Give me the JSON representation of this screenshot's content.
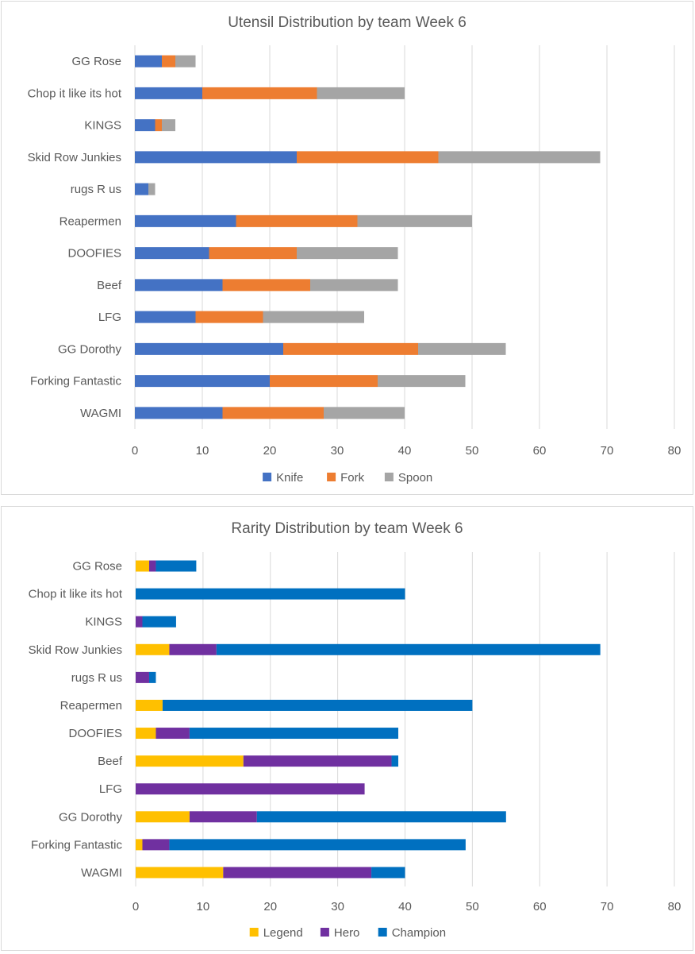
{
  "chart_data": [
    {
      "type": "bar",
      "orientation": "horizontal",
      "stacked": true,
      "title": "Utensil Distribution by team Week 6",
      "xlabel": "",
      "ylabel": "",
      "xlim": [
        0,
        80
      ],
      "ticks": [
        "0",
        "10",
        "20",
        "30",
        "40",
        "50",
        "60",
        "70",
        "80"
      ],
      "grid": true,
      "legend_position": "bottom",
      "categories": [
        "GG Rose",
        "Chop it like its hot",
        "KINGS",
        "Skid Row Junkies",
        "rugs R us",
        "Reapermen",
        "DOOFIES",
        "Beef",
        "LFG",
        "GG Dorothy",
        "Forking Fantastic",
        "WAGMI"
      ],
      "series": [
        {
          "name": "Knife",
          "color": "#4472C4",
          "values": [
            4,
            10,
            3,
            24,
            2,
            15,
            11,
            13,
            9,
            22,
            20,
            13
          ]
        },
        {
          "name": "Fork",
          "color": "#ED7D31",
          "values": [
            2,
            17,
            1,
            21,
            0,
            18,
            13,
            13,
            10,
            20,
            16,
            15
          ]
        },
        {
          "name": "Spoon",
          "color": "#A5A5A5",
          "values": [
            3,
            13,
            2,
            24,
            1,
            17,
            15,
            13,
            15,
            13,
            13,
            12
          ]
        }
      ]
    },
    {
      "type": "bar",
      "orientation": "horizontal",
      "stacked": true,
      "title": "Rarity Distribution by team Week 6",
      "xlabel": "",
      "ylabel": "",
      "xlim": [
        0,
        80
      ],
      "ticks": [
        "0",
        "10",
        "20",
        "30",
        "40",
        "50",
        "60",
        "70",
        "80"
      ],
      "grid": true,
      "legend_position": "bottom",
      "categories": [
        "GG Rose",
        "Chop it like its hot",
        "KINGS",
        "Skid Row Junkies",
        "rugs R us",
        "Reapermen",
        "DOOFIES",
        "Beef",
        "LFG",
        "GG Dorothy",
        "Forking Fantastic",
        "WAGMI"
      ],
      "series": [
        {
          "name": "Legend",
          "color": "#FFC000",
          "values": [
            2,
            0,
            0,
            5,
            0,
            4,
            3,
            16,
            0,
            8,
            1,
            13
          ]
        },
        {
          "name": "Hero",
          "color": "#7030A0",
          "values": [
            1,
            0,
            1,
            7,
            2,
            0,
            5,
            22,
            34,
            10,
            4,
            22
          ]
        },
        {
          "name": "Champion",
          "color": "#0070C0",
          "values": [
            6,
            40,
            5,
            57,
            1,
            46,
            31,
            1,
            0,
            37,
            44,
            5
          ]
        }
      ]
    }
  ]
}
